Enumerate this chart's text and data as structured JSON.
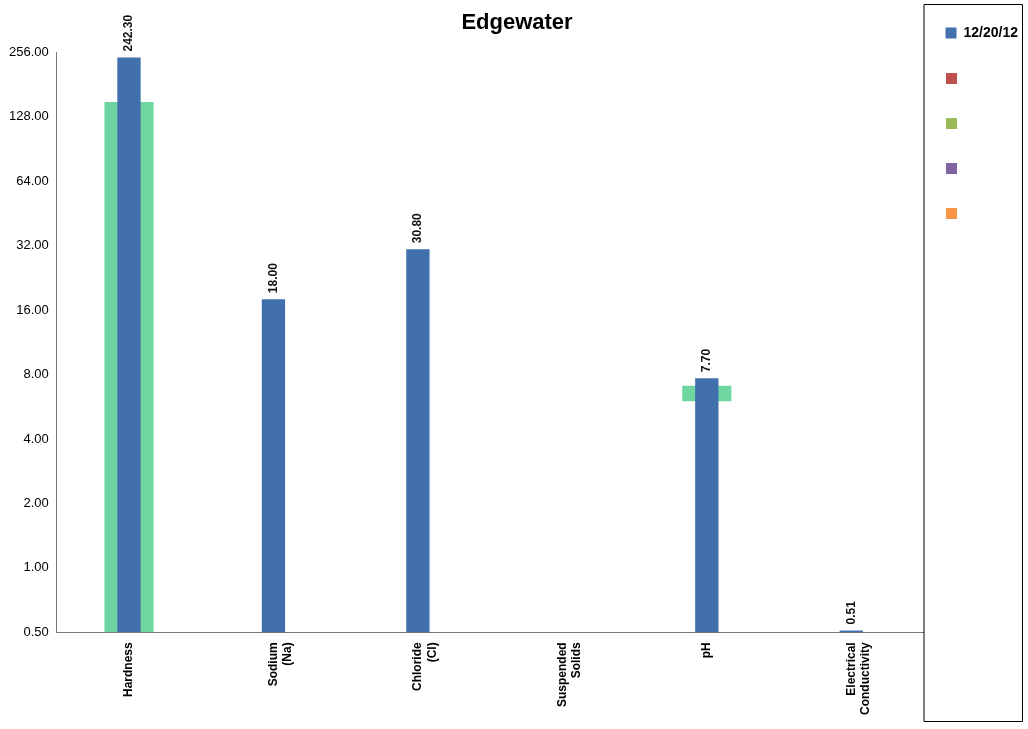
{
  "chart_data": {
    "type": "bar",
    "title": "Edgewater",
    "categories": [
      "Hardness",
      "Sodium (Na)",
      "Chloride (Cl)",
      "Suspended Solids",
      "pH",
      "Electrical Conductivity"
    ],
    "series": [
      {
        "name": "12/20/12",
        "color": "#4170ad",
        "values": [
          242.3,
          18,
          30.8,
          null,
          7.7,
          0.51
        ],
        "value_labels": [
          "242.30",
          "18.00",
          "30.80",
          null,
          "7.70",
          "0.51"
        ]
      },
      {
        "color": "#6fd6a2",
        "values": [
          149.5,
          null,
          null,
          null,
          1.1,
          null
        ],
        "base": [
          0.5,
          null,
          null,
          null,
          6.0,
          null
        ]
      }
    ],
    "log": "y",
    "ylim": [
      0.5,
      256
    ],
    "yticks": [
      {
        "value": 0.5,
        "label": "0.50"
      },
      {
        "value": 1,
        "label": "1.00"
      },
      {
        "value": 2,
        "label": "2.00"
      },
      {
        "value": 4,
        "label": "4.00"
      },
      {
        "value": 8,
        "label": "8.00"
      },
      {
        "value": 16,
        "label": "16.00"
      },
      {
        "value": 32,
        "label": "32.00"
      },
      {
        "value": 64,
        "label": "64.00"
      },
      {
        "value": 128,
        "label": "128.00"
      },
      {
        "value": 256,
        "label": "256.00"
      }
    ],
    "grid": false,
    "legend": "top right"
  }
}
